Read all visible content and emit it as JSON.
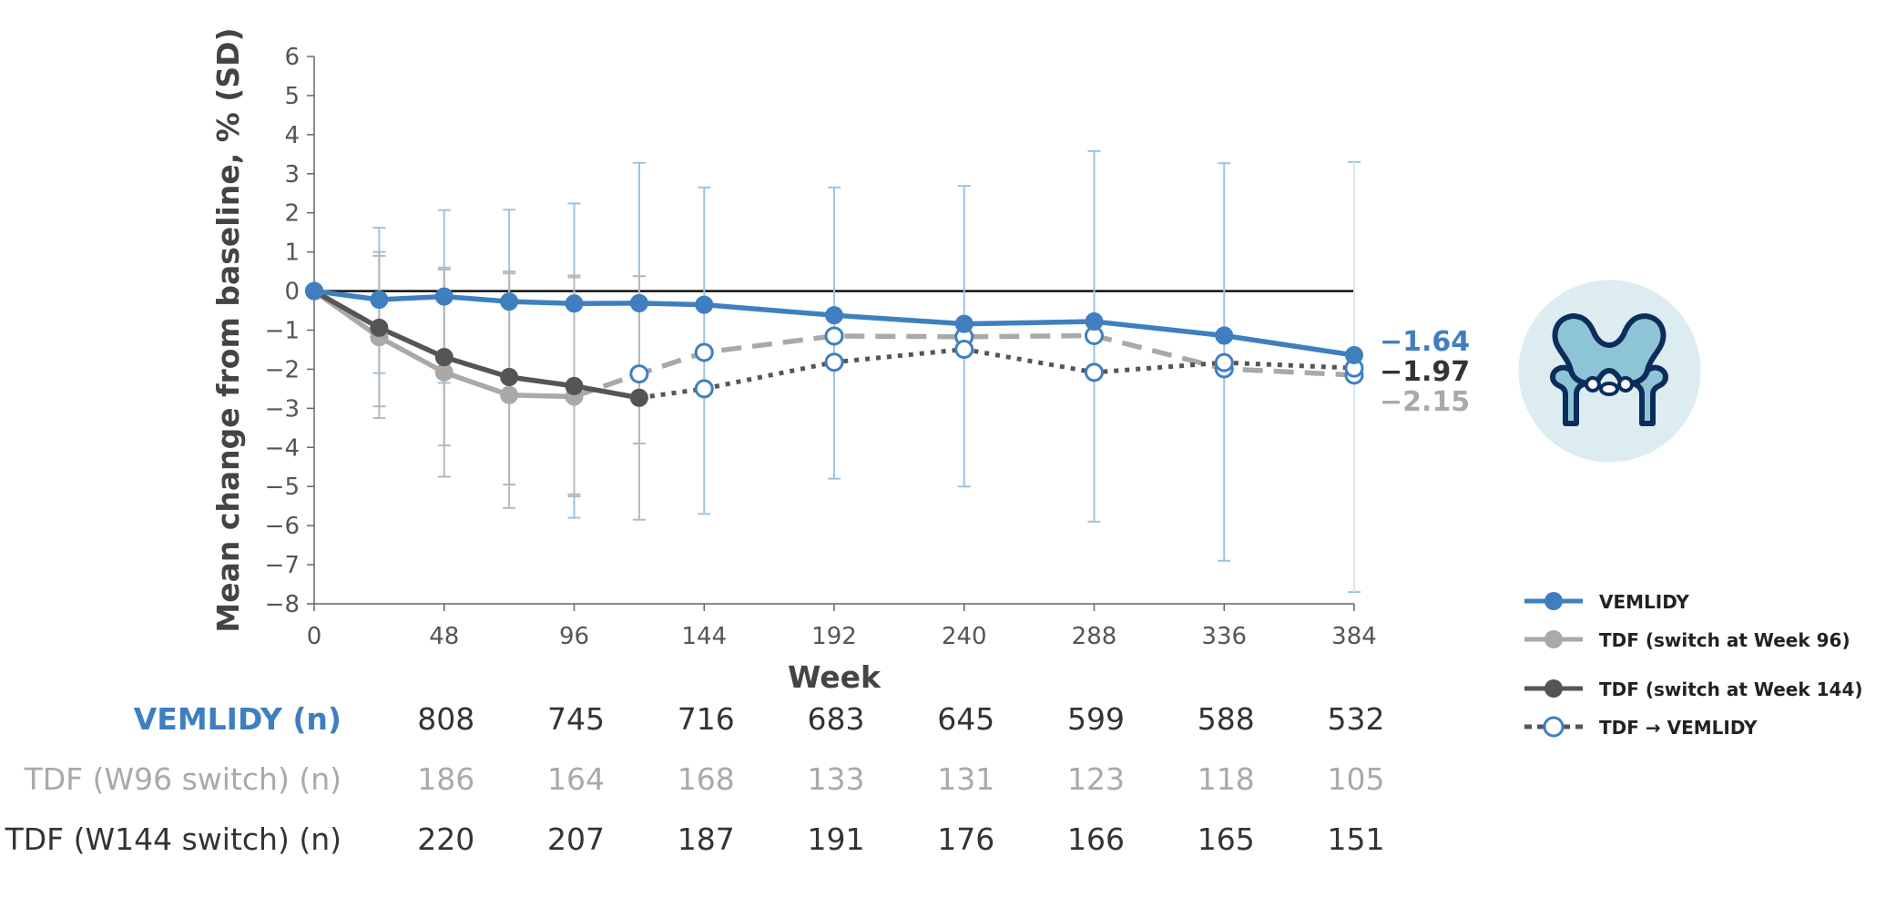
{
  "colors": {
    "vemlidy": "#3f7fc0",
    "tdf96": "#a9a9a9",
    "tdf144": "#555555",
    "errorbar": "#9dc3e2",
    "hip_bg": "#dcecf1",
    "hip_stroke": "#0c2d5c",
    "hip_fill": "#8ec5d6"
  },
  "chart_data": {
    "type": "line",
    "xlabel": "Week",
    "ylabel": "Mean change from baseline, % (SD)",
    "xlim": [
      0,
      384
    ],
    "ylim": [
      -8,
      6
    ],
    "xticks": [
      0,
      48,
      96,
      144,
      192,
      240,
      288,
      336,
      384
    ],
    "yticks": [
      -8,
      -7,
      -6,
      -5,
      -4,
      -3,
      -2,
      -1,
      0,
      1,
      2,
      3,
      4,
      5,
      6
    ],
    "reference_line": 0,
    "legend_position": "bottom-right",
    "series": [
      {
        "name": "VEMLIDY",
        "style": "solid-filled",
        "color": "#3f7fc0",
        "x": [
          0,
          24,
          48,
          72,
          96,
          120,
          144,
          192,
          240,
          288,
          336,
          384
        ],
        "y": [
          0,
          -0.22,
          -0.14,
          -0.27,
          -0.32,
          -0.31,
          -0.35,
          -0.62,
          -0.84,
          -0.78,
          -1.14,
          -1.64
        ],
        "error_low": [
          0,
          -2.1,
          -2.35,
          -2.5,
          -5.8,
          -3.9,
          -5.7,
          -4.8,
          -5.0,
          -5.9,
          -6.9,
          -7.7
        ],
        "error_high": [
          0,
          1.62,
          2.07,
          2.08,
          2.24,
          3.28,
          2.65,
          2.65,
          2.69,
          3.58,
          3.27,
          3.3
        ],
        "end_label": "−1.64"
      },
      {
        "name": "TDF (switch at Week 96)",
        "style": "solid-filled",
        "color": "#a9a9a9",
        "x": [
          0,
          24,
          48,
          72,
          96
        ],
        "y": [
          0,
          -1.18,
          -2.08,
          -2.66,
          -2.7
        ],
        "error_low": [
          0,
          -3.25,
          -4.75,
          -5.55,
          -5.2
        ],
        "error_high": [
          0,
          0.9,
          0.6,
          0.5,
          0.4
        ]
      },
      {
        "name": "TDF → VEMLIDY (W96 switch)",
        "style": "dashed-open",
        "color": "#a9a9a9",
        "x": [
          96,
          120,
          144,
          192,
          240,
          288,
          336,
          384
        ],
        "y": [
          -2.7,
          -2.12,
          -1.57,
          -1.15,
          -1.17,
          -1.14,
          -1.99,
          -2.15
        ],
        "end_label": "−2.15"
      },
      {
        "name": "TDF (switch at Week 144)",
        "style": "solid-filled",
        "color": "#555555",
        "x": [
          0,
          24,
          48,
          72,
          96,
          120
        ],
        "y": [
          0,
          -0.94,
          -1.69,
          -2.2,
          -2.43,
          -2.73
        ],
        "error_low": [
          0,
          -2.95,
          -3.95,
          -4.95,
          -5.25,
          -5.85
        ],
        "error_high": [
          0,
          1.0,
          0.55,
          0.45,
          0.35,
          0.38
        ]
      },
      {
        "name": "TDF → VEMLIDY (W144 switch)",
        "style": "dotted-open",
        "color": "#555555",
        "x": [
          120,
          144,
          192,
          240,
          288,
          336,
          384
        ],
        "y": [
          -2.73,
          -2.5,
          -1.82,
          -1.49,
          -2.08,
          -1.83,
          -1.97
        ],
        "end_label": "−1.97"
      }
    ]
  },
  "at_risk_table": {
    "weeks": [
      48,
      96,
      144,
      192,
      240,
      288,
      336,
      384
    ],
    "rows": [
      {
        "label": "VEMLIDY (n)",
        "color": "#3f7fc0",
        "values": [
          "808",
          "745",
          "716",
          "683",
          "645",
          "599",
          "588",
          "532"
        ]
      },
      {
        "label": "TDF (W96 switch) (n)",
        "color": "#a9a9a9",
        "values": [
          "186",
          "164",
          "168",
          "133",
          "131",
          "123",
          "118",
          "105"
        ]
      },
      {
        "label": "TDF (W144 switch) (n)",
        "color": "#333333",
        "values": [
          "220",
          "207",
          "187",
          "191",
          "176",
          "166",
          "165",
          "151"
        ]
      }
    ]
  },
  "legend": {
    "items": [
      {
        "label": "VEMLIDY",
        "style": "solid-filled",
        "color": "#3f7fc0"
      },
      {
        "label": "TDF (switch at Week 96)",
        "style": "solid-filled",
        "color": "#a9a9a9"
      },
      {
        "label": "TDF (switch at Week 144)",
        "style": "solid-filled",
        "color": "#555555"
      },
      {
        "label": "TDF → VEMLIDY",
        "style": "dashed-open",
        "color": "#3f7fc0"
      }
    ]
  },
  "icon": {
    "name": "hip-bone-icon"
  }
}
